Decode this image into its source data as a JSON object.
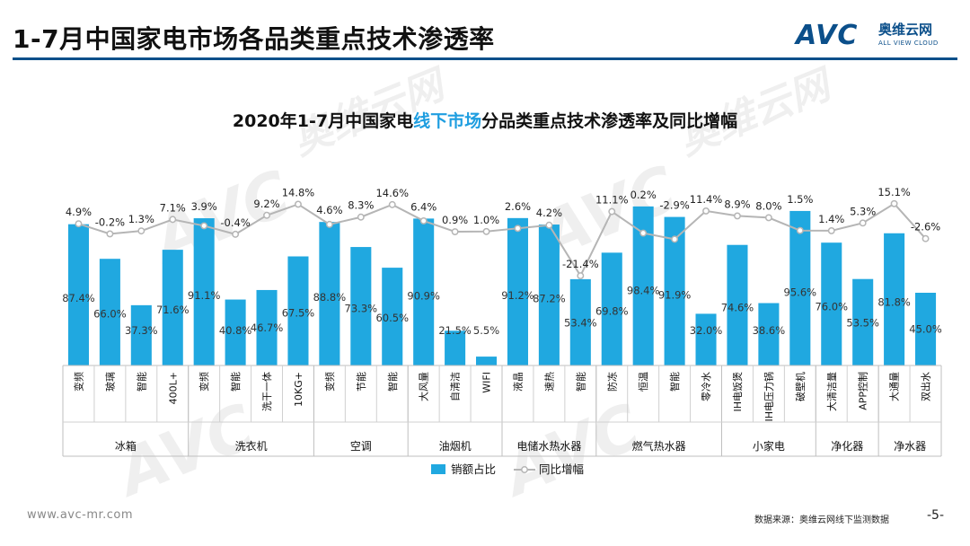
{
  "header": {
    "title": "1-7月中国家电市场各品类重点技术渗透率"
  },
  "logo": {
    "mark": "AVC",
    "cn": "奥维云网",
    "en": "ALL VIEW CLOUD"
  },
  "watermark": {
    "mark": "AVC",
    "cn": "奥维云网",
    "en": "ALL VIEW CLOUD"
  },
  "chart_data": {
    "type": "bar",
    "title_parts": [
      "2020年1-7月中国家电",
      "线下市场",
      "分品类重点技术渗透率及同比增幅"
    ],
    "legend": {
      "bar_label": "销额占比",
      "line_label": "同比增幅",
      "position": "bottom"
    },
    "colors": {
      "bar": "#20a8e0",
      "line": "#b5b5b5",
      "title_highlight": "#1f9ee0",
      "accent": "#0b4f8a"
    },
    "ylim_share": [
      0,
      100
    ],
    "groups": [
      {
        "name": "冰箱",
        "count": 4
      },
      {
        "name": "洗衣机",
        "count": 4
      },
      {
        "name": "空调",
        "count": 3
      },
      {
        "name": "油烟机",
        "count": 3
      },
      {
        "name": "电储水热水器",
        "count": 3
      },
      {
        "name": "燃气热水器",
        "count": 4
      },
      {
        "name": "小家电",
        "count": 3
      },
      {
        "name": "净化器",
        "count": 2
      },
      {
        "name": "净水器",
        "count": 2
      }
    ],
    "categories": [
      "变频",
      "玻璃",
      "智能",
      "400L+",
      "变频",
      "智能",
      "洗干一体",
      "10KG+",
      "变频",
      "节能",
      "智能",
      "大风量",
      "自清洁",
      "WIFI",
      "液晶",
      "速热",
      "智能",
      "防冻",
      "恒温",
      "智能",
      "零冷水",
      "IH电饭煲",
      "IH电压力锅",
      "破壁机",
      "大清洁量",
      "APP控制",
      "大通量",
      "双出水"
    ],
    "share_values": [
      87.4,
      66.0,
      37.3,
      71.6,
      91.1,
      40.8,
      46.7,
      67.5,
      88.8,
      73.3,
      60.5,
      90.9,
      21.5,
      5.5,
      91.2,
      87.2,
      53.4,
      69.8,
      98.4,
      91.9,
      32.0,
      74.6,
      38.6,
      95.6,
      76.0,
      53.5,
      81.8,
      45.0
    ],
    "share_labels": [
      "87.4%",
      "66.0%",
      "37.3%",
      "71.6%",
      "91.1%",
      "40.8%",
      "46.7%",
      "67.5%",
      "88.8%",
      "73.3%",
      "60.5%",
      "90.9%",
      "21.5%",
      "5.5%",
      "91.2%",
      "87.2%",
      "53.4%",
      "69.8%",
      "98.4%",
      "91.9%",
      "32.0%",
      "74.6%",
      "38.6%",
      "95.6%",
      "76.0%",
      "53.5%",
      "81.8%",
      "45.0%"
    ],
    "growth_values": [
      4.9,
      -0.2,
      1.3,
      7.1,
      3.9,
      -0.4,
      9.2,
      14.8,
      4.6,
      8.3,
      14.6,
      6.4,
      0.9,
      1.0,
      2.6,
      4.2,
      -21.4,
      11.1,
      0.2,
      -2.9,
      11.4,
      8.9,
      8.0,
      1.5,
      1.4,
      5.3,
      15.1,
      -2.6
    ],
    "growth_labels": [
      "4.9%",
      "-0.2%",
      "1.3%",
      "7.1%",
      "3.9%",
      "-0.4%",
      "9.2%",
      "14.8%",
      "4.6%",
      "8.3%",
      "14.6%",
      "6.4%",
      "0.9%",
      "1.0%",
      "2.6%",
      "4.2%",
      "-21.4%",
      "11.1%",
      "0.2%",
      "-2.9%",
      "11.4%",
      "8.9%",
      "8.0%",
      "1.5%",
      "1.4%",
      "5.3%",
      "15.1%",
      "-2.6%"
    ]
  },
  "footer": {
    "url": "www.avc-mr.com",
    "source": "数据来源：奥维云网线下监测数据",
    "page": "-5-"
  }
}
